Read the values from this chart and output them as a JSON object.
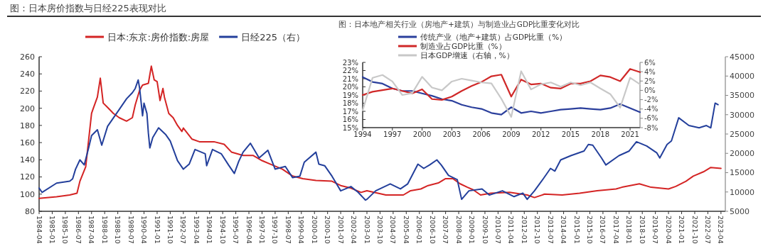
{
  "chart_data": [
    {
      "type": "line",
      "title": "图：日本房价指数与日经225表现对比",
      "legend": "top",
      "grid": false,
      "xlim": [
        "1984-04",
        "2023-07"
      ],
      "xticks": [
        "1984-04",
        "1985-01",
        "1985-10",
        "1986-07",
        "1987-04",
        "1988-01",
        "1988-10",
        "1989-07",
        "1990-04",
        "1991-01",
        "1991-10",
        "1992-07",
        "1993-04",
        "1994-01",
        "1994-10",
        "1995-07",
        "1996-04",
        "1997-01",
        "1997-10",
        "1998-07",
        "1999-04",
        "2000-01",
        "2000-10",
        "2001-07",
        "2002-04",
        "2003-01",
        "2003-10",
        "2004-07",
        "2005-04",
        "2006-01",
        "2006-10",
        "2007-07",
        "2008-04",
        "2009-01",
        "2009-10",
        "2010-07",
        "2011-04",
        "2012-01",
        "2012-10",
        "2013-07",
        "2014-04",
        "2015-01",
        "2015-10",
        "2016-07",
        "2017-04",
        "2018-01",
        "2018-10",
        "2019-07",
        "2020-04",
        "2021-01",
        "2021-10",
        "2022-07",
        "2023-04"
      ],
      "ylim": [
        80,
        260
      ],
      "yticks": [
        80,
        100,
        120,
        140,
        160,
        180,
        200,
        220,
        240,
        260
      ],
      "y2lim": [
        5000,
        45000
      ],
      "y2ticks": [
        5000,
        10000,
        15000,
        20000,
        25000,
        30000,
        35000,
        40000,
        45000
      ],
      "series": [
        {
          "name": "日本:东京:房价指数:房屋",
          "color": "#d42424",
          "x": [
            "1984-04",
            "1985-04",
            "1986-01",
            "1986-06",
            "1986-08",
            "1986-12",
            "1987-02",
            "1987-04",
            "1987-05",
            "1987-08",
            "1987-10",
            "1987-12",
            "1988-03",
            "1988-07",
            "1988-11",
            "1989-04",
            "1989-08",
            "1989-10",
            "1990-01",
            "1990-03",
            "1990-07",
            "1990-09",
            "1990-11",
            "1991-01",
            "1991-03",
            "1991-05",
            "1991-06",
            "1991-09",
            "1991-12",
            "1992-03",
            "1992-06",
            "1992-07",
            "1993-01",
            "1993-06",
            "1994-04",
            "1994-11",
            "1995-04",
            "1995-12",
            "1996-07",
            "1997-01",
            "1997-08",
            "1998-03",
            "1998-10",
            "1999-05",
            "2000-02",
            "2001-01",
            "2001-07",
            "2002-02",
            "2002-09",
            "2003-01",
            "2004-02",
            "2005-02",
            "2005-07",
            "2006-02",
            "2006-07",
            "2007-02",
            "2007-07",
            "2007-12",
            "2008-05",
            "2008-10",
            "2009-02",
            "2009-07",
            "2010-02",
            "2011-03",
            "2012-03",
            "2012-08",
            "2013-03",
            "2014-03",
            "2015-03",
            "2016-03",
            "2017-04",
            "2017-08",
            "2018-08",
            "2019-04",
            "2020-04",
            "2020-09",
            "2021-04",
            "2021-09",
            "2022-04",
            "2022-09",
            "2023-04"
          ],
          "values": [
            95,
            97,
            99,
            101,
            115,
            132,
            163,
            194,
            199,
            213,
            235,
            206,
            201,
            194,
            189,
            185,
            189,
            204,
            221,
            227,
            229,
            249,
            233,
            231,
            209,
            223,
            213,
            194,
            189,
            180,
            173,
            177,
            164,
            161,
            161,
            158,
            149,
            145,
            145,
            139,
            134,
            129,
            121,
            118,
            116,
            115,
            110,
            107,
            102,
            104,
            99,
            99,
            104,
            106,
            110,
            113,
            118,
            118,
            112,
            108,
            105,
            99,
            101,
            102,
            99,
            96,
            100,
            99,
            101,
            104,
            106,
            108,
            112,
            108,
            106,
            109,
            115,
            121,
            126,
            131,
            130
          ]
        },
        {
          "name": "日经225（右）",
          "color": "#233f9b",
          "axis": "y2",
          "x": [
            "1984-04",
            "1984-06",
            "1985-04",
            "1986-01",
            "1986-03",
            "1986-05",
            "1986-08",
            "1986-11",
            "1987-02",
            "1987-04",
            "1987-08",
            "1987-11",
            "1988-03",
            "1988-10",
            "1989-04",
            "1989-08",
            "1989-10",
            "1989-12",
            "1990-01",
            "1990-03",
            "1990-04",
            "1990-06",
            "1990-07",
            "1990-08",
            "1990-10",
            "1991-02",
            "1991-07",
            "1991-10",
            "1992-03",
            "1992-07",
            "1992-11",
            "1993-03",
            "1993-10",
            "1993-11",
            "1994-03",
            "1994-09",
            "1995-02",
            "1995-06",
            "1995-09",
            "1995-12",
            "1996-05",
            "1996-11",
            "1997-05",
            "1997-10",
            "1998-05",
            "1998-10",
            "1999-03",
            "1999-06",
            "2000-02",
            "2000-04",
            "2000-08",
            "2001-01",
            "2001-07",
            "2002-02",
            "2002-07",
            "2002-12",
            "2003-01",
            "2003-07",
            "2004-05",
            "2004-12",
            "2005-05",
            "2005-12",
            "2006-04",
            "2006-08",
            "2007-01",
            "2007-04",
            "2007-09",
            "2008-03",
            "2008-06",
            "2008-11",
            "2009-08",
            "2010-01",
            "2010-10",
            "2011-06",
            "2011-12",
            "2012-03",
            "2012-08",
            "2013-02",
            "2013-07",
            "2013-10",
            "2014-02",
            "2014-09",
            "2015-06",
            "2015-09",
            "2015-12",
            "2016-06",
            "2016-09",
            "2017-06",
            "2018-01",
            "2018-06",
            "2019-01",
            "2019-08",
            "2019-10",
            "2020-03",
            "2020-06",
            "2020-11",
            "2021-06",
            "2022-01",
            "2022-06",
            "2022-09",
            "2022-12",
            "2023-02"
          ],
          "values": [
            11000,
            9900,
            12300,
            12800,
            13400,
            15900,
            18300,
            17000,
            21400,
            24600,
            26100,
            22100,
            27000,
            30800,
            34100,
            35700,
            36800,
            39000,
            36800,
            29700,
            33000,
            30300,
            25200,
            21400,
            24100,
            26600,
            24800,
            23200,
            18100,
            15900,
            17200,
            21000,
            19900,
            16800,
            21000,
            19900,
            17000,
            14800,
            17900,
            20300,
            22600,
            18800,
            20800,
            15900,
            16600,
            13700,
            14100,
            17700,
            20300,
            17200,
            16800,
            14100,
            10300,
            11400,
            9900,
            7900,
            8100,
            10300,
            12100,
            10800,
            12100,
            17200,
            16100,
            17000,
            18300,
            17000,
            14300,
            13200,
            8100,
            10300,
            10800,
            9200,
            10300,
            8800,
            9700,
            8100,
            10300,
            13400,
            16100,
            15400,
            18300,
            19400,
            20600,
            22300,
            22100,
            18800,
            17000,
            19400,
            20600,
            23000,
            21900,
            20100,
            18800,
            22300,
            23200,
            29200,
            27200,
            26600,
            27200,
            26600,
            33000,
            32600
          ]
        }
      ]
    },
    {
      "type": "line",
      "title": "图：日本地产相关行业（房地产+建筑）与制造业占GDP比重变化对比",
      "legend": "top",
      "grid": false,
      "x": [
        1994,
        1995,
        1996,
        1997,
        1998,
        1999,
        2000,
        2001,
        2002,
        2003,
        2004,
        2005,
        2006,
        2007,
        2008,
        2009,
        2010,
        2011,
        2012,
        2013,
        2014,
        2015,
        2016,
        2017,
        2018,
        2019,
        2020,
        2021,
        2022
      ],
      "xlim": [
        1994,
        2022
      ],
      "xticks": [
        1994,
        1997,
        2000,
        2003,
        2006,
        2009,
        2012,
        2015,
        2018,
        2021
      ],
      "ylim": [
        15,
        23
      ],
      "yticks": [
        {
          "value": 15,
          "label": "15%"
        },
        {
          "value": 16,
          "label": "16%"
        },
        {
          "value": 17,
          "label": "17%"
        },
        {
          "value": 18,
          "label": "18%"
        },
        {
          "value": 19,
          "label": "19%"
        },
        {
          "value": 20,
          "label": "20%"
        },
        {
          "value": 21,
          "label": "21%"
        },
        {
          "value": 22,
          "label": "22%"
        },
        {
          "value": 23,
          "label": "23%"
        }
      ],
      "y2lim": [
        -8,
        6
      ],
      "y2ticks": [
        {
          "value": -8,
          "label": "-8%"
        },
        {
          "value": -6,
          "label": "-6%"
        },
        {
          "value": -4,
          "label": "-4%"
        },
        {
          "value": -2,
          "label": "-2%"
        },
        {
          "value": 0,
          "label": "0%"
        },
        {
          "value": 2,
          "label": "2%"
        },
        {
          "value": 4,
          "label": "4%"
        },
        {
          "value": 6,
          "label": "6%"
        }
      ],
      "series": [
        {
          "name": "传统产业（地产+建筑）占GDP比重（%）",
          "color": "#2b3f9c",
          "values": [
            21.2,
            20.6,
            20.4,
            19.8,
            19.5,
            19.5,
            19.2,
            18.9,
            18.5,
            18.3,
            17.8,
            17.5,
            17.3,
            16.8,
            16.6,
            17.5,
            16.8,
            17.0,
            16.8,
            17.0,
            17.2,
            17.3,
            17.4,
            17.3,
            17.2,
            17.4,
            17.9,
            17.4,
            16.9
          ]
        },
        {
          "name": "制造业占GDP比重（%）",
          "color": "#d02828",
          "values": [
            19.0,
            19.4,
            19.6,
            19.8,
            19.5,
            19.2,
            19.7,
            18.5,
            18.4,
            18.8,
            19.5,
            20.1,
            20.6,
            21.3,
            21.5,
            18.8,
            20.9,
            20.3,
            20.4,
            19.9,
            19.8,
            20.4,
            20.4,
            20.7,
            21.4,
            21.2,
            20.7,
            22.2,
            21.8
          ]
        },
        {
          "name": "日本GDP增速（右轴，%）",
          "color": "#c8c8c8",
          "axis": "y2",
          "values": [
            -4.3,
            2.7,
            3.3,
            1.9,
            -1.0,
            -0.6,
            2.9,
            0.6,
            0.0,
            1.9,
            2.5,
            2.1,
            1.7,
            1.5,
            -1.8,
            -5.7,
            4.1,
            0.2,
            1.3,
            1.7,
            0.8,
            1.7,
            1.1,
            1.7,
            0.4,
            -0.8,
            -3.7,
            2.7,
            1.3
          ]
        }
      ]
    }
  ]
}
